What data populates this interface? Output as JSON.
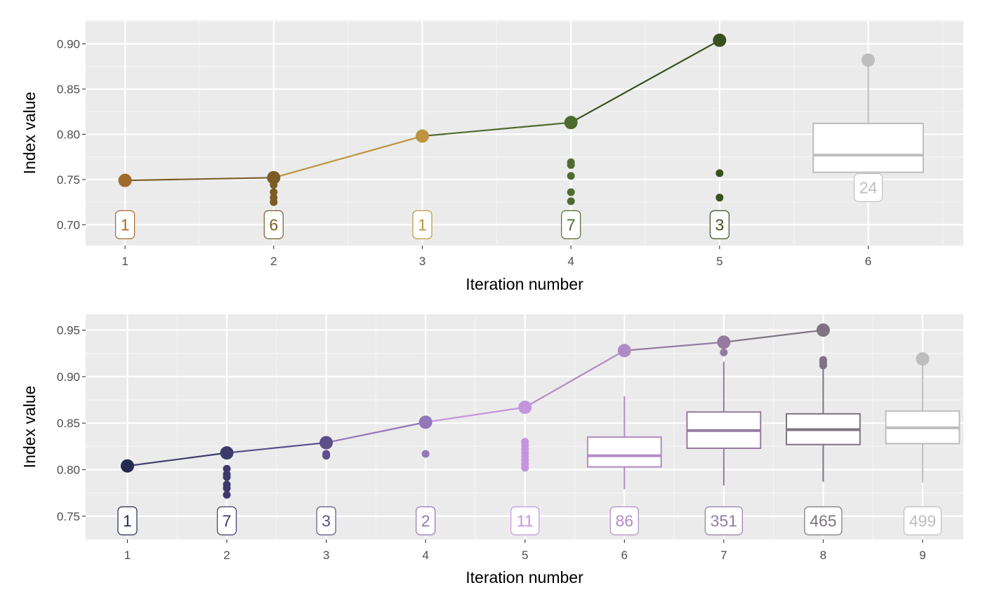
{
  "chart_data": [
    {
      "type": "line",
      "xlabel": "Iteration number",
      "ylabel": "Index value",
      "xlim": [
        0.735,
        6.64
      ],
      "ylim": [
        0.677,
        0.926
      ],
      "x_ticks": [
        1,
        2,
        3,
        4,
        5,
        6
      ],
      "y_ticks": [
        0.7,
        0.75,
        0.8,
        0.85,
        0.9
      ],
      "y_tick_labels": [
        "0.70",
        "0.75",
        "0.80",
        "0.85",
        "0.90"
      ],
      "grid": true,
      "label_y": 0.7,
      "best_path": [
        {
          "x": 1,
          "y": 0.749,
          "color": "#a06a2c"
        },
        {
          "x": 2,
          "y": 0.752,
          "color": "#7c5c24"
        },
        {
          "x": 3,
          "y": 0.798,
          "color": "#bd9540"
        },
        {
          "x": 4,
          "y": 0.813,
          "color": "#4e6b30"
        },
        {
          "x": 5,
          "y": 0.904,
          "color": "#39501f"
        }
      ],
      "iterations": [
        {
          "x": 1,
          "count": "1",
          "color": "#a06a2c",
          "points": []
        },
        {
          "x": 2,
          "count": "6",
          "color": "#7c5c24",
          "points": [
            0.744,
            0.736,
            0.73,
            0.725
          ]
        },
        {
          "x": 3,
          "count": "1",
          "color": "#bd9540",
          "points": []
        },
        {
          "x": 4,
          "count": "7",
          "color": "#4e6b30",
          "points": [
            0.769,
            0.766,
            0.754,
            0.736,
            0.726
          ]
        },
        {
          "x": 5,
          "count": "3",
          "color": "#39501f",
          "points": [
            0.757,
            0.73
          ]
        },
        {
          "x": 6,
          "count": "24",
          "color": "#bebebe",
          "label_y": 0.741,
          "points": [],
          "box": {
            "min": 0.758,
            "q1": 0.758,
            "median": 0.777,
            "q3": 0.812,
            "max": 0.882,
            "outliers": [
              0.882
            ]
          }
        }
      ]
    },
    {
      "type": "line",
      "xlabel": "Iteration number",
      "ylabel": "Index value",
      "xlim": [
        0.58,
        9.41
      ],
      "ylim": [
        0.725,
        0.967
      ],
      "x_ticks": [
        1,
        2,
        3,
        4,
        5,
        6,
        7,
        8,
        9
      ],
      "y_ticks": [
        0.75,
        0.8,
        0.85,
        0.9,
        0.95
      ],
      "y_tick_labels": [
        "0.75",
        "0.80",
        "0.85",
        "0.90",
        "0.95"
      ],
      "grid": true,
      "label_y": 0.745,
      "best_path": [
        {
          "x": 1,
          "y": 0.804,
          "color": "#252a52"
        },
        {
          "x": 2,
          "y": 0.818,
          "color": "#3c3a6a"
        },
        {
          "x": 3,
          "y": 0.829,
          "color": "#5d4f8a"
        },
        {
          "x": 4,
          "y": 0.851,
          "color": "#9377b8"
        },
        {
          "x": 5,
          "y": 0.867,
          "color": "#c495dc"
        },
        {
          "x": 6,
          "y": 0.928,
          "color": "#b08cc4"
        },
        {
          "x": 7,
          "y": 0.937,
          "color": "#957ba0"
        },
        {
          "x": 8,
          "y": 0.95,
          "color": "#7f7383"
        }
      ],
      "iterations": [
        {
          "x": 1,
          "count": "1",
          "color": "#252a52",
          "points": []
        },
        {
          "x": 2,
          "count": "7",
          "color": "#3c3a6a",
          "points": [
            0.801,
            0.795,
            0.792,
            0.784,
            0.78,
            0.773
          ]
        },
        {
          "x": 3,
          "count": "3",
          "color": "#5d4f8a",
          "points": [
            0.817,
            0.815
          ]
        },
        {
          "x": 4,
          "count": "2",
          "color": "#9377b8",
          "points": [
            0.817
          ]
        },
        {
          "x": 5,
          "count": "11",
          "color": "#c495dc",
          "points": [
            0.83,
            0.826,
            0.822,
            0.818,
            0.814,
            0.81,
            0.806,
            0.802
          ]
        },
        {
          "x": 6,
          "count": "86",
          "color": "#b08cc4",
          "points": [],
          "box": {
            "min": 0.779,
            "q1": 0.803,
            "median": 0.815,
            "q3": 0.835,
            "max": 0.879,
            "outliers": []
          }
        },
        {
          "x": 7,
          "count": "351",
          "color": "#957ba0",
          "points": [],
          "box": {
            "min": 0.783,
            "q1": 0.823,
            "median": 0.842,
            "q3": 0.862,
            "max": 0.916,
            "outliers": [
              0.926
            ]
          }
        },
        {
          "x": 8,
          "count": "465",
          "color": "#7f7383",
          "points": [],
          "box": {
            "min": 0.787,
            "q1": 0.827,
            "median": 0.843,
            "q3": 0.86,
            "max": 0.91,
            "outliers": [
              0.918,
              0.915,
              0.912
            ]
          }
        },
        {
          "x": 9,
          "count": "499",
          "color": "#bebebe",
          "points": [],
          "box": {
            "min": 0.786,
            "q1": 0.828,
            "median": 0.845,
            "q3": 0.863,
            "max": 0.919,
            "outliers": [
              0.919
            ]
          }
        }
      ]
    }
  ]
}
